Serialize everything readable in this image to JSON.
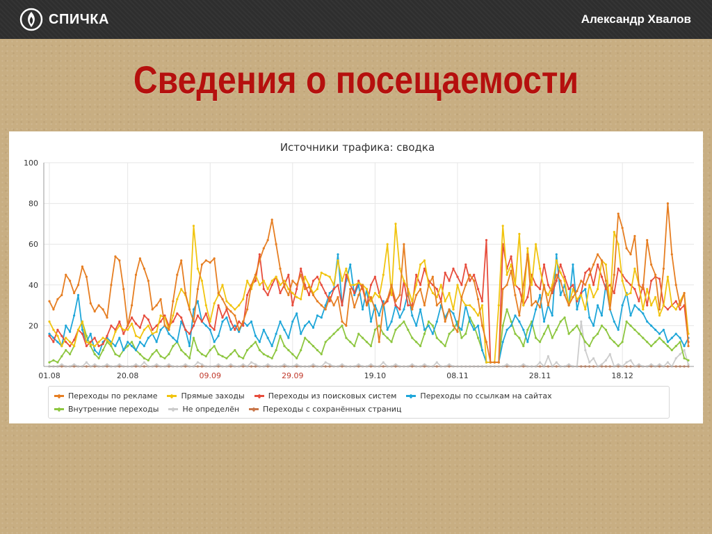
{
  "header": {
    "brand": "СПИЧКА",
    "author": "Александр Хвалов"
  },
  "slide": {
    "title": "Сведения о посещаемости"
  },
  "colors": {
    "title": "#b5100e",
    "topbar": "#2e2e2e",
    "background": "#c8ae82"
  },
  "chart_data": {
    "type": "line",
    "title": "Источники трафика: сводка",
    "ylim": [
      0,
      100
    ],
    "y_ticks": [
      100,
      80,
      60,
      40,
      20
    ],
    "x_ticks": [
      {
        "label": "01.08",
        "index": 0,
        "color": "#333333"
      },
      {
        "label": "20.08",
        "index": 19,
        "color": "#333333"
      },
      {
        "label": "09.09",
        "index": 39,
        "color": "#c0392b"
      },
      {
        "label": "29.09",
        "index": 59,
        "color": "#c0392b"
      },
      {
        "label": "19.10",
        "index": 79,
        "color": "#333333"
      },
      {
        "label": "08.11",
        "index": 99,
        "color": "#333333"
      },
      {
        "label": "28.11",
        "index": 119,
        "color": "#333333"
      },
      {
        "label": "18.12",
        "index": 139,
        "color": "#333333"
      }
    ],
    "grid": true,
    "legend_position": "bottom",
    "series": [
      {
        "name": "Переходы по рекламе",
        "color": "#e67e22",
        "values": [
          32,
          28,
          33,
          35,
          45,
          42,
          36,
          40,
          49,
          44,
          31,
          27,
          30,
          28,
          24,
          40,
          54,
          52,
          38,
          20,
          30,
          45,
          53,
          48,
          42,
          28,
          30,
          33,
          20,
          18,
          32,
          45,
          52,
          36,
          28,
          22,
          38,
          50,
          52,
          51,
          53,
          36,
          33,
          29,
          27,
          25,
          18,
          22,
          28,
          40,
          45,
          52,
          58,
          62,
          72,
          60,
          48,
          39,
          35,
          42,
          40,
          45,
          38,
          39,
          35,
          32,
          30,
          28,
          34,
          30,
          34,
          22,
          20,
          38,
          29,
          35,
          40,
          30,
          34,
          28,
          12,
          30,
          33,
          40,
          32,
          35,
          60,
          35,
          28,
          35,
          38,
          30,
          40,
          44,
          30,
          32,
          22,
          28,
          20,
          17,
          34,
          40,
          45,
          42,
          33,
          20,
          12,
          2,
          2,
          2,
          38,
          40,
          47,
          35,
          25,
          40,
          55,
          30,
          32,
          29,
          40,
          30,
          38,
          45,
          42,
          35,
          30,
          34,
          37,
          42,
          40,
          45,
          50,
          55,
          52,
          42,
          28,
          45,
          75,
          68,
          58,
          55,
          64,
          40,
          38,
          62,
          50,
          45,
          28,
          48,
          80,
          55,
          40,
          30,
          36,
          10
        ]
      },
      {
        "name": "Прямые заходы",
        "color": "#f1c40f",
        "values": [
          22,
          18,
          15,
          10,
          14,
          12,
          10,
          18,
          22,
          12,
          11,
          10,
          12,
          14,
          13,
          11,
          17,
          20,
          18,
          18,
          21,
          15,
          14,
          18,
          20,
          16,
          17,
          25,
          24,
          18,
          25,
          33,
          38,
          35,
          28,
          69,
          48,
          42,
          30,
          22,
          31,
          35,
          40,
          32,
          30,
          28,
          30,
          33,
          42,
          38,
          45,
          40,
          42,
          38,
          42,
          44,
          40,
          42,
          38,
          36,
          34,
          33,
          44,
          40,
          36,
          38,
          46,
          45,
          44,
          40,
          52,
          42,
          48,
          40,
          40,
          41,
          40,
          38,
          32,
          36,
          34,
          45,
          60,
          35,
          70,
          48,
          42,
          38,
          32,
          40,
          50,
          52,
          40,
          36,
          34,
          40,
          32,
          36,
          28,
          40,
          33,
          30,
          30,
          28,
          25,
          30,
          2,
          2,
          2,
          30,
          69,
          45,
          50,
          40,
          65,
          30,
          58,
          40,
          60,
          48,
          38,
          35,
          40,
          52,
          46,
          42,
          30,
          38,
          33,
          35,
          28,
          40,
          34,
          38,
          52,
          50,
          30,
          66,
          60,
          42,
          35,
          36,
          48,
          40,
          28,
          38,
          30,
          34,
          25,
          30,
          44,
          30,
          28,
          32,
          36,
          16
        ]
      },
      {
        "name": "Переходы из поисковых систем",
        "color": "#e74c3c",
        "values": [
          15,
          12,
          18,
          15,
          12,
          10,
          13,
          18,
          16,
          10,
          12,
          14,
          10,
          11,
          15,
          20,
          18,
          22,
          16,
          20,
          24,
          21,
          19,
          25,
          23,
          18,
          20,
          22,
          25,
          20,
          22,
          26,
          24,
          18,
          16,
          20,
          25,
          22,
          26,
          20,
          18,
          30,
          24,
          28,
          22,
          18,
          22,
          20,
          35,
          40,
          42,
          55,
          38,
          35,
          40,
          44,
          36,
          40,
          45,
          30,
          38,
          48,
          40,
          35,
          42,
          44,
          40,
          36,
          32,
          38,
          40,
          30,
          45,
          40,
          36,
          42,
          38,
          30,
          40,
          44,
          36,
          30,
          32,
          38,
          30,
          28,
          42,
          30,
          30,
          45,
          40,
          48,
          42,
          40,
          38,
          32,
          46,
          42,
          48,
          44,
          40,
          50,
          42,
          45,
          38,
          32,
          62,
          2,
          2,
          2,
          60,
          48,
          54,
          40,
          38,
          30,
          34,
          45,
          40,
          38,
          50,
          40,
          36,
          42,
          50,
          44,
          38,
          40,
          32,
          36,
          46,
          48,
          40,
          50,
          44,
          38,
          40,
          36,
          48,
          45,
          42,
          40,
          38,
          32,
          40,
          30,
          42,
          44,
          43,
          30,
          28,
          30,
          32,
          28,
          30,
          12
        ]
      },
      {
        "name": "Переходы по ссылкам на сайтах",
        "color": "#1ea6d9",
        "values": [
          16,
          14,
          12,
          10,
          20,
          17,
          25,
          35,
          18,
          12,
          16,
          8,
          6,
          12,
          14,
          12,
          10,
          14,
          8,
          12,
          10,
          8,
          12,
          10,
          14,
          16,
          12,
          18,
          20,
          16,
          14,
          12,
          22,
          18,
          10,
          28,
          32,
          22,
          20,
          18,
          12,
          15,
          22,
          24,
          18,
          20,
          17,
          22,
          20,
          22,
          15,
          12,
          18,
          14,
          10,
          16,
          22,
          18,
          14,
          22,
          26,
          16,
          20,
          22,
          19,
          25,
          24,
          30,
          36,
          38,
          55,
          30,
          42,
          50,
          35,
          40,
          28,
          38,
          22,
          30,
          25,
          32,
          18,
          22,
          30,
          24,
          28,
          36,
          25,
          20,
          28,
          18,
          20,
          16,
          22,
          30,
          24,
          28,
          26,
          20,
          18,
          30,
          22,
          18,
          20,
          8,
          2,
          2,
          2,
          2,
          12,
          18,
          20,
          25,
          22,
          18,
          12,
          20,
          28,
          35,
          22,
          30,
          25,
          55,
          35,
          40,
          30,
          50,
          28,
          36,
          38,
          24,
          20,
          30,
          25,
          40,
          28,
          22,
          18,
          30,
          36,
          25,
          30,
          28,
          26,
          22,
          20,
          18,
          16,
          18,
          12,
          14,
          16,
          14,
          10,
          14
        ]
      },
      {
        "name": "Внутренние переходы",
        "color": "#8dc63f",
        "values": [
          2,
          3,
          2,
          5,
          8,
          6,
          10,
          18,
          22,
          15,
          10,
          6,
          4,
          8,
          12,
          10,
          6,
          5,
          8,
          10,
          12,
          8,
          6,
          4,
          3,
          6,
          8,
          5,
          4,
          6,
          10,
          12,
          8,
          6,
          4,
          14,
          8,
          6,
          5,
          8,
          10,
          6,
          5,
          4,
          6,
          8,
          5,
          4,
          8,
          10,
          12,
          8,
          6,
          5,
          4,
          8,
          15,
          10,
          8,
          6,
          4,
          8,
          14,
          12,
          10,
          8,
          6,
          12,
          14,
          16,
          18,
          20,
          14,
          12,
          10,
          16,
          14,
          12,
          10,
          18,
          20,
          16,
          14,
          12,
          18,
          20,
          22,
          18,
          14,
          12,
          10,
          16,
          22,
          20,
          14,
          12,
          10,
          16,
          18,
          22,
          14,
          16,
          24,
          20,
          14,
          8,
          2,
          2,
          2,
          2,
          20,
          28,
          22,
          16,
          14,
          10,
          18,
          22,
          14,
          12,
          16,
          20,
          14,
          18,
          22,
          24,
          16,
          18,
          20,
          16,
          12,
          10,
          14,
          16,
          20,
          18,
          14,
          12,
          10,
          12,
          22,
          20,
          18,
          16,
          14,
          12,
          10,
          12,
          14,
          12,
          10,
          8,
          10,
          12,
          4,
          3
        ]
      },
      {
        "name": "Не определён",
        "color": "#cccccc",
        "values": [
          0,
          0,
          0,
          1,
          0,
          0,
          1,
          0,
          0,
          2,
          0,
          1,
          0,
          0,
          1,
          0,
          0,
          1,
          0,
          0,
          0,
          1,
          0,
          2,
          0,
          0,
          1,
          0,
          0,
          1,
          0,
          0,
          0,
          1,
          0,
          0,
          2,
          1,
          0,
          0,
          0,
          1,
          0,
          0,
          1,
          0,
          0,
          1,
          0,
          2,
          1,
          0,
          0,
          1,
          0,
          0,
          0,
          1,
          0,
          0,
          1,
          0,
          0,
          0,
          1,
          0,
          0,
          2,
          1,
          0,
          0,
          1,
          0,
          0,
          0,
          1,
          0,
          0,
          1,
          0,
          0,
          2,
          0,
          0,
          1,
          0,
          0,
          0,
          1,
          0,
          0,
          1,
          0,
          0,
          2,
          0,
          0,
          1,
          0,
          0,
          0,
          0,
          0,
          0,
          0,
          0,
          0,
          0,
          0,
          0,
          0,
          1,
          0,
          0,
          0,
          1,
          0,
          0,
          0,
          2,
          0,
          5,
          0,
          2,
          0,
          0,
          1,
          0,
          0,
          22,
          8,
          2,
          4,
          0,
          1,
          3,
          6,
          0,
          1,
          0,
          2,
          3,
          0,
          1,
          0,
          0,
          1,
          0,
          1,
          0,
          2,
          0,
          4,
          6,
          8,
          1
        ]
      },
      {
        "name": "Переходы с сохранённых страниц",
        "color": "#c9764a",
        "values": [
          0,
          0,
          0,
          0,
          0,
          0,
          0,
          0,
          0,
          0,
          0,
          0,
          0,
          0,
          0,
          0,
          0,
          0,
          0,
          0,
          0,
          0,
          0,
          0,
          0,
          0,
          0,
          0,
          0,
          0,
          0,
          0,
          0,
          0,
          0,
          0,
          0,
          0,
          0,
          0,
          0,
          0,
          0,
          0,
          0,
          0,
          0,
          0,
          0,
          0,
          0,
          0,
          0,
          0,
          0,
          0,
          0,
          0,
          0,
          0,
          0,
          0,
          0,
          0,
          0,
          0,
          0,
          0,
          0,
          0,
          0,
          0,
          0,
          0,
          0,
          0,
          0,
          0,
          0,
          0,
          0,
          0,
          0,
          0,
          0,
          0,
          0,
          0,
          0,
          0,
          0,
          0,
          0,
          0,
          0,
          0,
          0,
          0,
          0,
          0,
          0,
          0,
          0,
          0,
          0,
          0,
          0,
          0,
          0,
          0,
          0,
          0,
          0,
          0,
          0,
          0,
          0,
          0,
          0,
          0,
          0,
          0,
          0,
          0,
          0,
          0,
          0,
          0,
          0,
          0,
          0,
          0,
          0,
          0,
          0,
          0,
          0,
          0,
          0,
          0,
          0,
          0,
          0,
          0,
          0,
          0,
          0,
          0,
          0,
          0,
          0,
          0,
          0,
          0,
          0,
          0
        ]
      }
    ]
  }
}
